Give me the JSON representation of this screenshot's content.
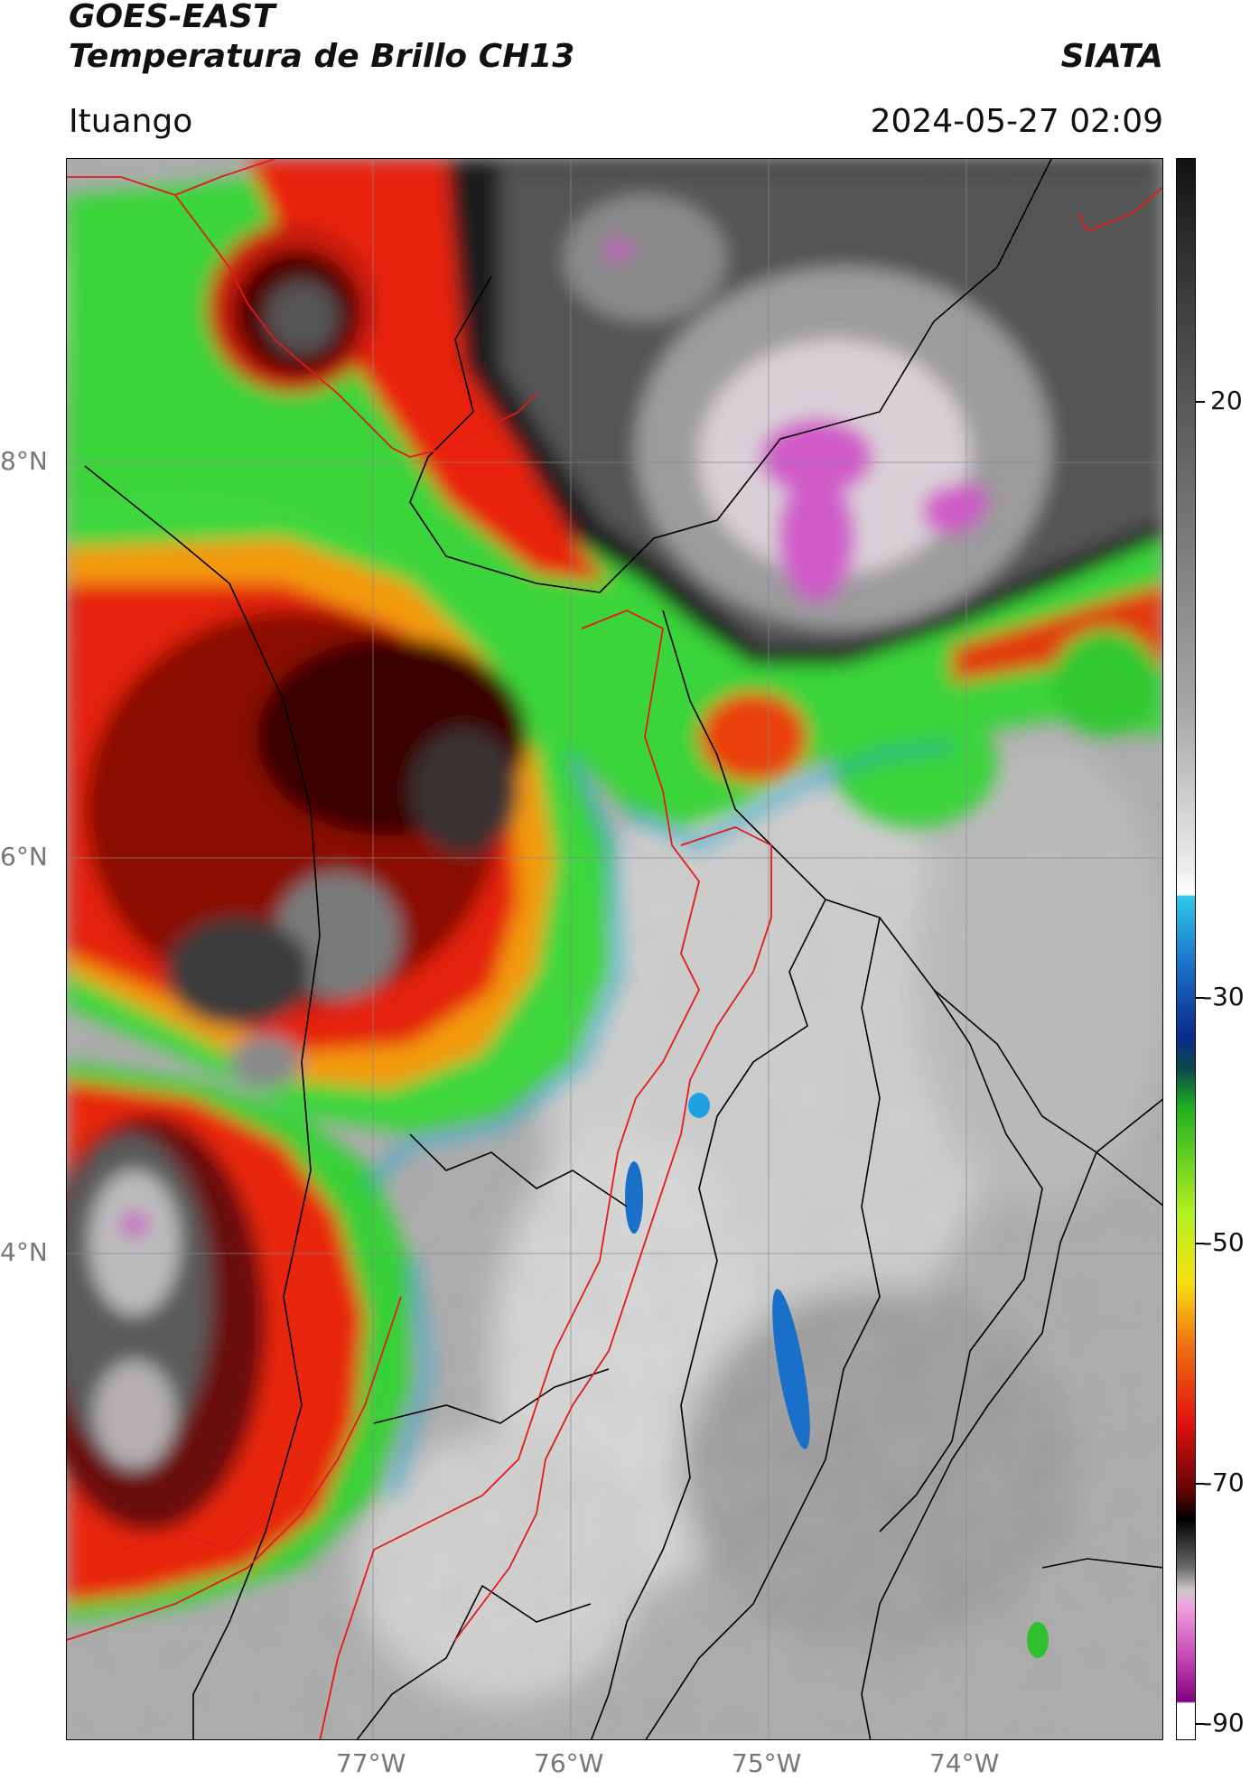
{
  "header": {
    "satellite": "GOES-EAST",
    "product": "Temperatura de Brillo CH13",
    "agency": "SIATA",
    "location": "Ituango",
    "datetime": "2024-05-27 02:09"
  },
  "map": {
    "lat_labels": [
      "8°N",
      "6°N",
      "4°N"
    ],
    "lon_labels": [
      "77°W",
      "76°W",
      "75°W",
      "74°W"
    ],
    "extent": {
      "lon_min": -78.55,
      "lon_max": -73.0,
      "lat_min": 2.55,
      "lat_max": 9.55
    },
    "colors": {
      "border_country": "#e21a1a",
      "border_admin": "#000000",
      "grid": "#888888"
    }
  },
  "colorbar": {
    "ticks": [
      {
        "label": "20",
        "value": 20
      },
      {
        "label": "-30",
        "value": -30
      },
      {
        "label": "-50",
        "value": -50
      },
      {
        "label": "-70",
        "value": -70
      },
      {
        "label": "-90",
        "value": -90
      }
    ],
    "range": [
      -92,
      41
    ]
  }
}
